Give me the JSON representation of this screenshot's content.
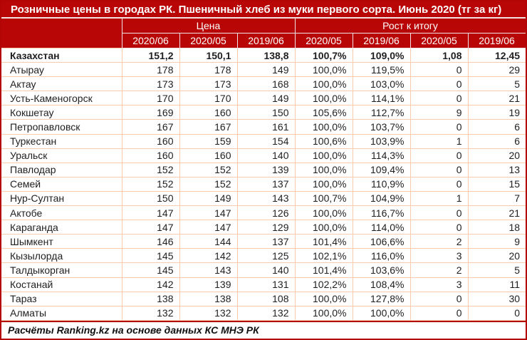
{
  "title": "Розничные цены в городах РК. Пшеничный хлеб из муки первого сорта. Июнь 2020 (тг за кг)",
  "footer": "Расчёты Ranking.kz на основе данных КС МНЭ РК",
  "colors": {
    "header_background": "#b80606",
    "header_text": "#ffffff",
    "outer_border": "#b30505",
    "row_border": "#f8cbad",
    "body_text": "#1f1f1f"
  },
  "chart_data": {
    "type": "table",
    "title": "Розничные цены в городах РК. Пшеничный хлеб из муки первого сорта. Июнь 2020 (тг за кг)",
    "column_groups": [
      {
        "label": "Цена",
        "span": 3
      },
      {
        "label": "Рост к итогу",
        "span": 4
      }
    ],
    "columns": [
      "2020/06",
      "2020/05",
      "2019/06",
      "2020/05",
      "2019/06",
      "2020/05",
      "2019/06"
    ],
    "rows": [
      {
        "name": "Казахстан",
        "bold": true,
        "values": [
          "151,2",
          "150,1",
          "138,8",
          "100,7%",
          "109,0%",
          "1,08",
          "12,45"
        ]
      },
      {
        "name": "Атырау",
        "bold": false,
        "values": [
          "178",
          "178",
          "149",
          "100,0%",
          "119,5%",
          "0",
          "29"
        ]
      },
      {
        "name": "Актау",
        "bold": false,
        "values": [
          "173",
          "173",
          "168",
          "100,0%",
          "103,0%",
          "0",
          "5"
        ]
      },
      {
        "name": "Усть-Каменогорск",
        "bold": false,
        "values": [
          "170",
          "170",
          "149",
          "100,0%",
          "114,1%",
          "0",
          "21"
        ]
      },
      {
        "name": "Кокшетау",
        "bold": false,
        "values": [
          "169",
          "160",
          "150",
          "105,6%",
          "112,7%",
          "9",
          "19"
        ]
      },
      {
        "name": "Петропавловск",
        "bold": false,
        "values": [
          "167",
          "167",
          "161",
          "100,0%",
          "103,7%",
          "0",
          "6"
        ]
      },
      {
        "name": "Туркестан",
        "bold": false,
        "values": [
          "160",
          "159",
          "154",
          "100,6%",
          "103,9%",
          "1",
          "6"
        ]
      },
      {
        "name": "Уральск",
        "bold": false,
        "values": [
          "160",
          "160",
          "140",
          "100,0%",
          "114,3%",
          "0",
          "20"
        ]
      },
      {
        "name": "Павлодар",
        "bold": false,
        "values": [
          "152",
          "152",
          "139",
          "100,0%",
          "109,4%",
          "0",
          "13"
        ]
      },
      {
        "name": "Семей",
        "bold": false,
        "values": [
          "152",
          "152",
          "137",
          "100,0%",
          "110,9%",
          "0",
          "15"
        ]
      },
      {
        "name": "Нур-Султан",
        "bold": false,
        "values": [
          "150",
          "149",
          "143",
          "100,7%",
          "104,9%",
          "1",
          "7"
        ]
      },
      {
        "name": "Актобе",
        "bold": false,
        "values": [
          "147",
          "147",
          "126",
          "100,0%",
          "116,7%",
          "0",
          "21"
        ]
      },
      {
        "name": "Караганда",
        "bold": false,
        "values": [
          "147",
          "147",
          "129",
          "100,0%",
          "114,0%",
          "0",
          "18"
        ]
      },
      {
        "name": "Шымкент",
        "bold": false,
        "values": [
          "146",
          "144",
          "137",
          "101,4%",
          "106,6%",
          "2",
          "9"
        ]
      },
      {
        "name": "Кызылорда",
        "bold": false,
        "values": [
          "145",
          "142",
          "125",
          "102,1%",
          "116,0%",
          "3",
          "20"
        ]
      },
      {
        "name": "Талдыкорган",
        "bold": false,
        "values": [
          "145",
          "143",
          "140",
          "101,4%",
          "103,6%",
          "2",
          "5"
        ]
      },
      {
        "name": "Костанай",
        "bold": false,
        "values": [
          "142",
          "139",
          "131",
          "102,2%",
          "108,4%",
          "3",
          "11"
        ]
      },
      {
        "name": "Тараз",
        "bold": false,
        "values": [
          "138",
          "138",
          "108",
          "100,0%",
          "127,8%",
          "0",
          "30"
        ]
      },
      {
        "name": "Алматы",
        "bold": false,
        "values": [
          "132",
          "132",
          "132",
          "100,0%",
          "100,0%",
          "0",
          "0"
        ]
      }
    ]
  }
}
